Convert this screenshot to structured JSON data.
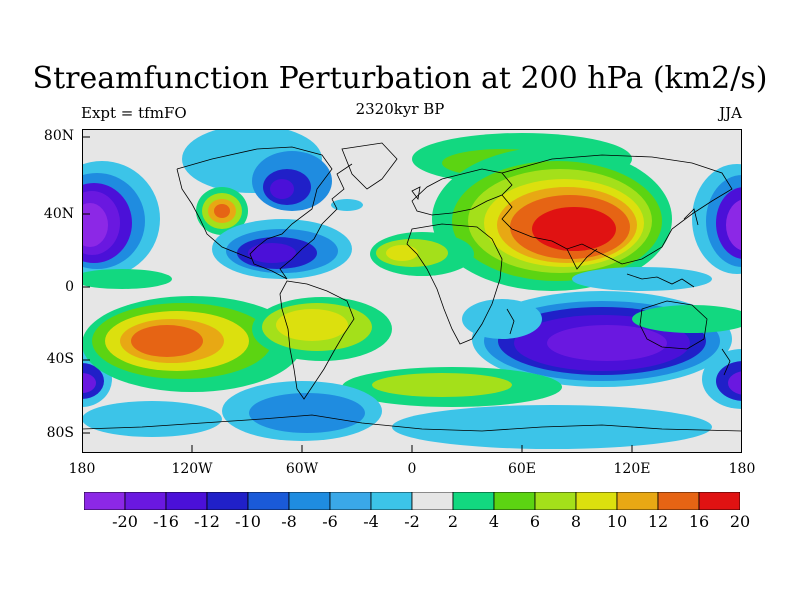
{
  "title": "Streamfunction Perturbation at 200 hPa (km2/s)",
  "left_label": "Expt = tfmFO",
  "center_label": "2320kyr BP",
  "right_label": "JJA",
  "y_ticks": [
    "80N",
    "40N",
    "0",
    "40S",
    "80S"
  ],
  "x_ticks": [
    "180",
    "120W",
    "60W",
    "0",
    "60E",
    "120E",
    "180"
  ],
  "colorbar": {
    "labels": [
      "-20",
      "-16",
      "-12",
      "-10",
      "-8",
      "-6",
      "-4",
      "-2",
      "2",
      "4",
      "6",
      "8",
      "10",
      "12",
      "16",
      "20"
    ],
    "colors": [
      "#8c28e6",
      "#6a18e0",
      "#4b10d8",
      "#2020c8",
      "#1a5ad8",
      "#1f8ce0",
      "#3aa8e8",
      "#3cc4e8",
      "#e6e6e6",
      "#12d880",
      "#5cd412",
      "#a4e01a",
      "#dce00e",
      "#e8a814",
      "#e66414",
      "#e01212"
    ]
  },
  "chart_data": {
    "type": "heatmap",
    "title": "Streamfunction Perturbation at 200 hPa (km2/s)",
    "subtitle": "2320kyr BP",
    "annotations": [
      "Expt = tfmFO",
      "JJA"
    ],
    "x_range": [
      "180",
      "180"
    ],
    "y_range": [
      "80S",
      "80N"
    ],
    "levels": [
      -20,
      -16,
      -12,
      -10,
      -8,
      -6,
      -4,
      -2,
      2,
      4,
      6,
      8,
      10,
      12,
      16,
      20
    ],
    "features": [
      {
        "region": "South Asia / Tibetan Plateau",
        "sign": "positive",
        "peak": 20
      },
      {
        "region": "North America west",
        "sign": "positive",
        "peak": 12
      },
      {
        "region": "South Pacific subtropics",
        "sign": "positive",
        "peak": 16
      },
      {
        "region": "South Atlantic",
        "sign": "positive",
        "peak": 10
      },
      {
        "region": "North Pacific",
        "sign": "negative",
        "peak": -20
      },
      {
        "region": "South Indian Ocean / Australia",
        "sign": "negative",
        "peak": -20
      },
      {
        "region": "North America east / Caribbean",
        "sign": "negative",
        "peak": -16
      }
    ]
  }
}
